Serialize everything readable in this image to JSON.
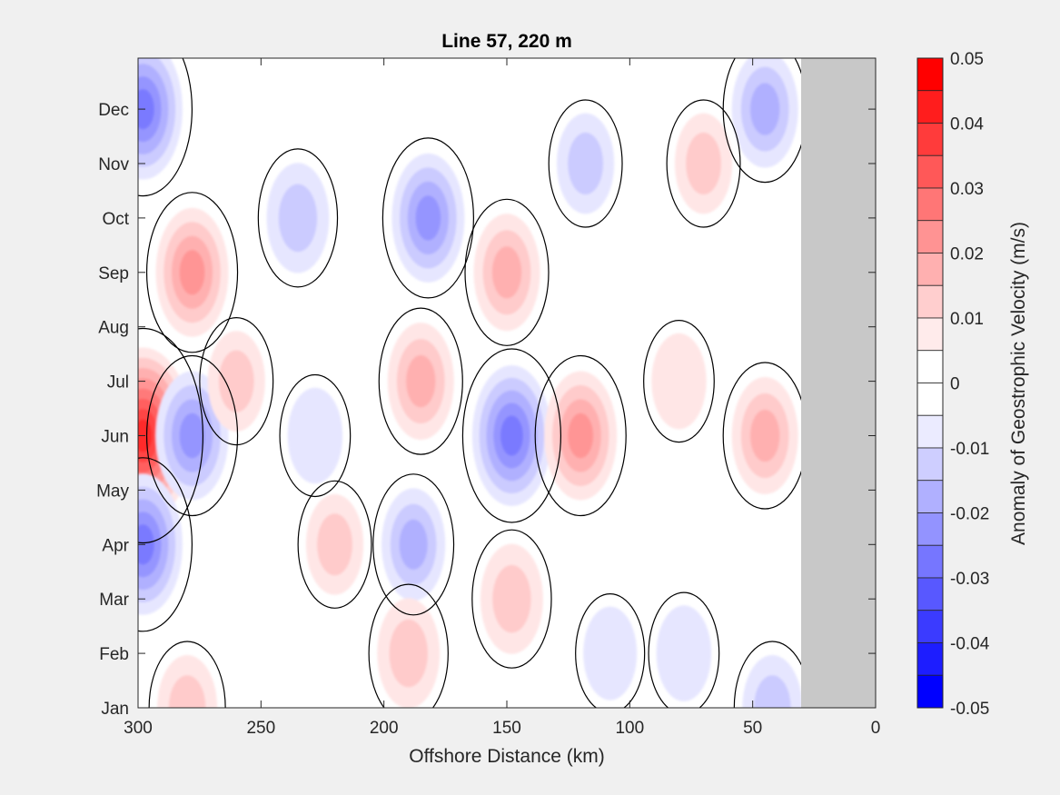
{
  "chart_data": {
    "type": "heatmap",
    "title": "Line 57, 220 m",
    "xlabel": "Offshore Distance (km)",
    "ylabel": "",
    "colorbar_label": "Anomaly of Geostrophic Velocity (m/s)",
    "x_range": [
      300,
      0
    ],
    "x_ticks": [
      "300",
      "250",
      "200",
      "150",
      "100",
      "50",
      "0"
    ],
    "y_ticks": [
      "Jan",
      "Feb",
      "Mar",
      "Apr",
      "May",
      "Jun",
      "Jul",
      "Aug",
      "Sep",
      "Oct",
      "Nov",
      "Dec"
    ],
    "colorbar_ticks": [
      "0.05",
      "0.04",
      "0.03",
      "0.02",
      "0.01",
      "0",
      "-0.01",
      "-0.02",
      "-0.03",
      "-0.04",
      "-0.05"
    ],
    "color_range": [
      -0.05,
      0.05
    ],
    "contour_interval": 0.005,
    "no_data_region_km": [
      0,
      30
    ],
    "colormap": "blue-white-red",
    "colors": {
      "positive": "#ff0000",
      "negative": "#0000ff",
      "zero": "#ffffff",
      "no_data": "#c8c8c8",
      "zero_contour": "#000000"
    },
    "features": [
      {
        "center_km": 298,
        "month": "Jun",
        "value": 0.04
      },
      {
        "center_km": 298,
        "month": "Dec",
        "value": -0.025
      },
      {
        "center_km": 298,
        "month": "Apr",
        "value": -0.025
      },
      {
        "center_km": 278,
        "month": "Sep",
        "value": 0.02
      },
      {
        "center_km": 278,
        "month": "Jun",
        "value": -0.02
      },
      {
        "center_km": 280,
        "month": "Jan",
        "value": 0.01
      },
      {
        "center_km": 260,
        "month": "Jul",
        "value": 0.008
      },
      {
        "center_km": 235,
        "month": "Oct",
        "value": -0.012
      },
      {
        "center_km": 228,
        "month": "Jun",
        "value": -0.006
      },
      {
        "center_km": 220,
        "month": "Apr",
        "value": 0.008
      },
      {
        "center_km": 182,
        "month": "Oct",
        "value": -0.02
      },
      {
        "center_km": 185,
        "month": "Jul",
        "value": 0.015
      },
      {
        "center_km": 188,
        "month": "Apr",
        "value": -0.013
      },
      {
        "center_km": 190,
        "month": "Feb",
        "value": 0.012
      },
      {
        "center_km": 150,
        "month": "Sep",
        "value": 0.015
      },
      {
        "center_km": 148,
        "month": "Jun",
        "value": -0.025
      },
      {
        "center_km": 148,
        "month": "Mar",
        "value": 0.012
      },
      {
        "center_km": 118,
        "month": "Nov",
        "value": -0.008
      },
      {
        "center_km": 120,
        "month": "Jun",
        "value": 0.02
      },
      {
        "center_km": 108,
        "month": "Feb",
        "value": -0.005
      },
      {
        "center_km": 80,
        "month": "Jul",
        "value": 0.006
      },
      {
        "center_km": 70,
        "month": "Nov",
        "value": 0.008
      },
      {
        "center_km": 45,
        "month": "Dec",
        "value": -0.015
      },
      {
        "center_km": 45,
        "month": "Jun",
        "value": 0.015
      },
      {
        "center_km": 78,
        "month": "Feb",
        "value": -0.006
      },
      {
        "center_km": 42,
        "month": "Jan",
        "value": -0.01
      }
    ]
  }
}
